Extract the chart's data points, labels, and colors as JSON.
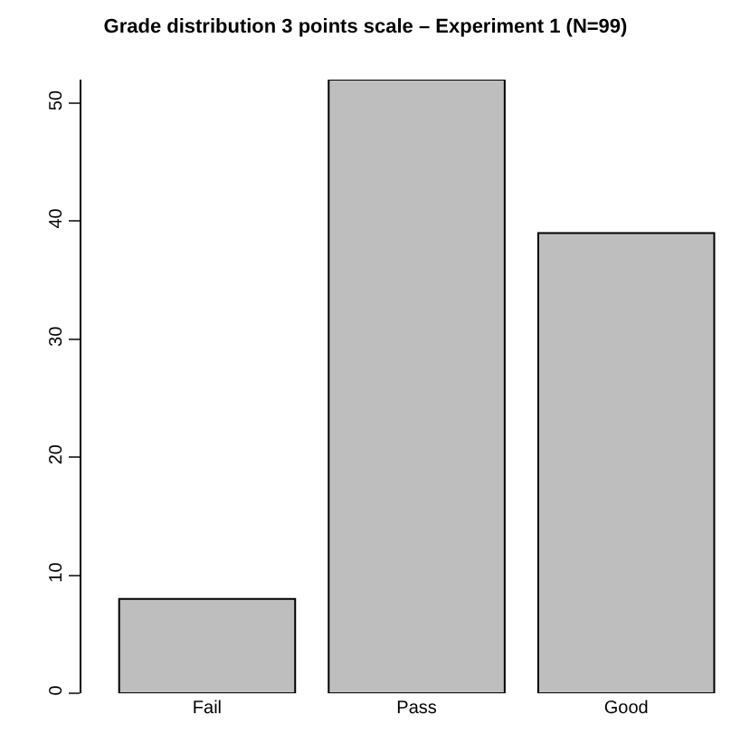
{
  "chart_data": {
    "type": "bar",
    "title": "Grade distribution 3 points scale – Experiment 1 (N=99)",
    "categories": [
      "Fail",
      "Pass",
      "Good"
    ],
    "values": [
      8,
      52,
      39
    ],
    "color": "#bebebe",
    "ylim": [
      0,
      52
    ],
    "yticks": [
      0,
      10,
      20,
      30,
      40,
      50
    ]
  }
}
